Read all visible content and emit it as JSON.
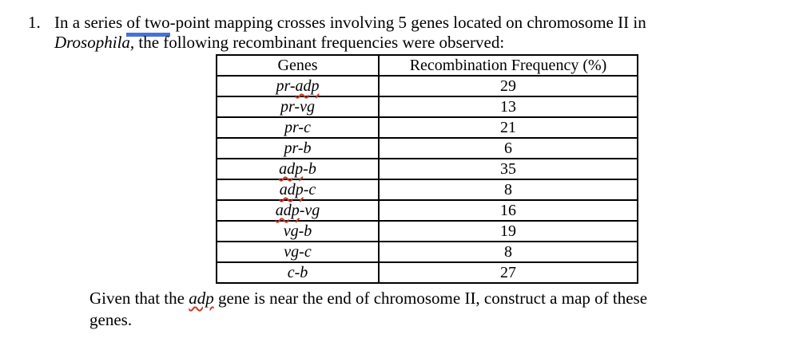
{
  "document": {
    "question_number": "1.",
    "intro": {
      "part1": "In a series ",
      "grammar_flagged": "of two",
      "part2": "-point mapping crosses involving 5 genes located on chromosome II in",
      "species": "Drosophila",
      "part3": ", the following recombinant frequencies were observed:"
    },
    "table": {
      "headers": [
        "Genes",
        "Recombination Frequency (%)"
      ],
      "rows": [
        {
          "gene": "pr-adp",
          "misspelled": "adp",
          "frequency": "29"
        },
        {
          "gene": "pr-vg",
          "misspelled": null,
          "frequency": "13"
        },
        {
          "gene": "pr-c",
          "misspelled": null,
          "frequency": "21"
        },
        {
          "gene": "pr-b",
          "misspelled": null,
          "frequency": "6"
        },
        {
          "gene": "adp-b",
          "misspelled": "adp",
          "frequency": "35"
        },
        {
          "gene": "adp-c",
          "misspelled": "adp",
          "frequency": "8"
        },
        {
          "gene": "adp-vg",
          "misspelled": "adp",
          "frequency": "16"
        },
        {
          "gene": "vg-b",
          "misspelled": null,
          "frequency": "19"
        },
        {
          "gene": "vg-c",
          "misspelled": null,
          "frequency": "8"
        },
        {
          "gene": "c-b",
          "misspelled": null,
          "frequency": "27"
        }
      ]
    },
    "footer": {
      "part1": "Given that the ",
      "misspelled": "adp",
      "part2": " gene is near the end of chromosome II, construct a map of these",
      "part3": "genes."
    },
    "colors": {
      "spellcheck_red": "#cc3a28",
      "grammar_blue": "#4472d9",
      "text": "#000000"
    }
  }
}
